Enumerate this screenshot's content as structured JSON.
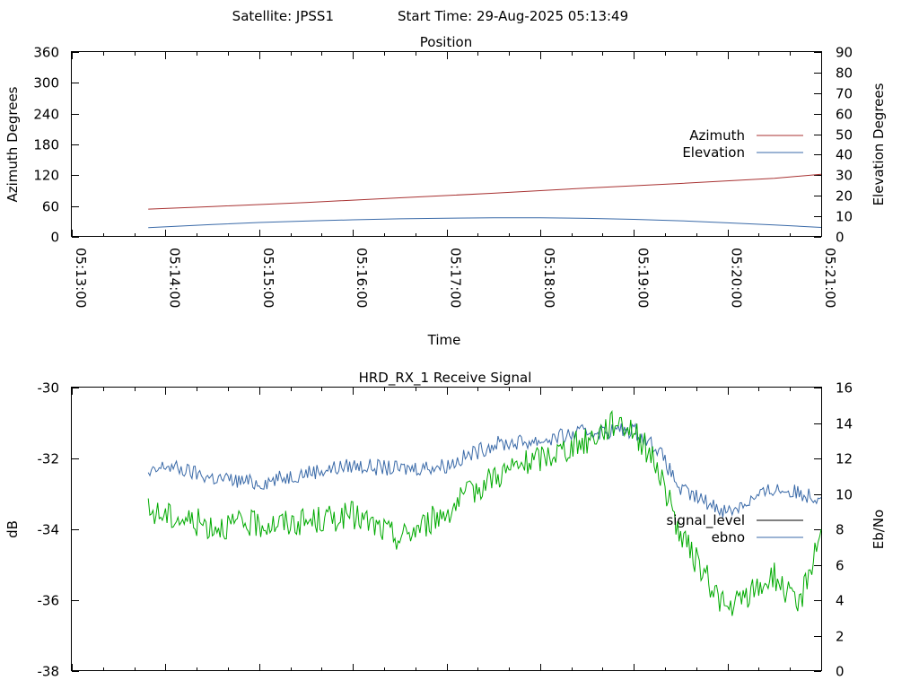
{
  "header": {
    "satellite": "Satellite: JPSS1",
    "start_time": "Start Time: 29-Aug-2025 05:13:49"
  },
  "chart_data": [
    {
      "type": "line",
      "title": "Position",
      "xlabel": "Time",
      "ylabel": "Azimuth Degrees",
      "y2label": "Elevation Degrees",
      "x_ticks": [
        "05:13:00",
        "05:14:00",
        "05:15:00",
        "05:16:00",
        "05:17:00",
        "05:18:00",
        "05:19:00",
        "05:20:00",
        "05:21:00"
      ],
      "xlim": [
        "05:13:00",
        "05:21:00"
      ],
      "ylim": [
        0,
        360
      ],
      "y_ticks": [
        "0",
        "60",
        "120",
        "180",
        "240",
        "300",
        "360"
      ],
      "y2lim": [
        0,
        90
      ],
      "y2_ticks": [
        "0",
        "10",
        "20",
        "30",
        "40",
        "50",
        "60",
        "70",
        "80",
        "90"
      ],
      "legend_position": "right",
      "series": [
        {
          "name": "Azimuth",
          "axis": "left",
          "color": "#a83232",
          "x": [
            "05:13:49",
            "05:14:30",
            "05:15:30",
            "05:16:30",
            "05:17:30",
            "05:18:30",
            "05:19:30",
            "05:20:30",
            "05:21:00"
          ],
          "y": [
            54,
            59,
            67,
            76,
            85,
            95,
            104,
            114,
            122
          ]
        },
        {
          "name": "Elevation",
          "axis": "right",
          "color": "#3a6aa8",
          "x": [
            "05:13:49",
            "05:14:30",
            "05:15:00",
            "05:15:30",
            "05:16:00",
            "05:16:30",
            "05:17:00",
            "05:17:30",
            "05:18:00",
            "05:18:30",
            "05:19:00",
            "05:19:30",
            "05:20:00",
            "05:20:30",
            "05:21:00"
          ],
          "y": [
            4.5,
            6.0,
            7.0,
            7.7,
            8.3,
            8.8,
            9.1,
            9.3,
            9.3,
            9.0,
            8.5,
            7.8,
            6.8,
            5.8,
            4.6
          ]
        }
      ]
    },
    {
      "type": "line",
      "title": "HRD_RX_1 Receive Signal",
      "ylabel": "dB",
      "y2label": "Eb/No",
      "ylim": [
        -38,
        -30
      ],
      "y_ticks": [
        "-38",
        "-36",
        "-34",
        "-32",
        "-30"
      ],
      "y2lim": [
        0,
        16
      ],
      "y2_ticks": [
        "0",
        "2",
        "4",
        "6",
        "8",
        "10",
        "12",
        "14",
        "16"
      ],
      "xlim": [
        "05:13:00",
        "05:21:00"
      ],
      "legend_position": "right",
      "series": [
        {
          "name": "signal_level",
          "axis": "left",
          "color": "#000000",
          "x": [],
          "y": []
        },
        {
          "name": "ebno",
          "axis": "right",
          "color": "#3a6aa8",
          "x": [
            "05:13:49",
            "05:14:00",
            "05:14:30",
            "05:15:00",
            "05:15:30",
            "05:16:00",
            "05:16:30",
            "05:17:00",
            "05:17:30",
            "05:18:00",
            "05:18:30",
            "05:19:00",
            "05:19:15",
            "05:19:30",
            "05:20:00",
            "05:20:30",
            "05:21:00"
          ],
          "y": [
            11.0,
            11.6,
            10.9,
            10.6,
            11.2,
            11.6,
            11.4,
            11.6,
            12.8,
            13.0,
            13.5,
            13.6,
            12.6,
            10.2,
            9.0,
            10.3,
            9.8
          ]
        },
        {
          "name": "",
          "axis": "right",
          "color": "#00aa00",
          "x": [
            "05:13:49",
            "05:14:00",
            "05:14:30",
            "05:15:00",
            "05:15:30",
            "05:16:00",
            "05:16:30",
            "05:17:00",
            "05:17:30",
            "05:18:00",
            "05:18:30",
            "05:18:50",
            "05:19:00",
            "05:19:15",
            "05:19:30",
            "05:20:00",
            "05:20:30",
            "05:20:45",
            "05:21:00"
          ],
          "y": [
            9.0,
            8.8,
            8.2,
            8.3,
            8.4,
            8.8,
            7.5,
            9.0,
            11.0,
            12.0,
            13.0,
            14.2,
            13.6,
            11.6,
            7.6,
            3.4,
            5.4,
            3.5,
            8.0
          ]
        }
      ]
    }
  ]
}
